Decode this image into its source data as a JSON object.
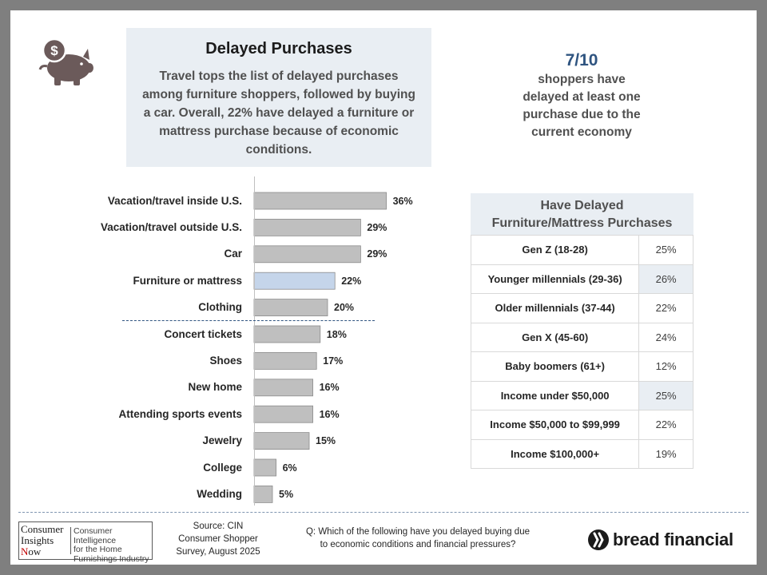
{
  "header": {
    "title": "Delayed Purchases",
    "body": "Travel tops the list of delayed purchases among furniture shoppers, followed by buying a car. Overall, 22% have delayed a furniture or mattress purchase because of economic conditions."
  },
  "stat": {
    "value": "7/10",
    "line1": "shoppers have",
    "line2": "delayed at least one",
    "line3": "purchase due to the",
    "line4": "current economy"
  },
  "chart_data": {
    "type": "bar",
    "orientation": "horizontal",
    "categories": [
      "Vacation/travel inside U.S.",
      "Vacation/travel outside U.S.",
      "Car",
      "Furniture or mattress",
      "Clothing",
      "Concert tickets",
      "Shoes",
      "New home",
      "Attending sports events",
      "Jewelry",
      "College",
      "Wedding"
    ],
    "values": [
      36,
      29,
      29,
      22,
      20,
      18,
      17,
      16,
      16,
      15,
      6,
      5
    ],
    "value_labels": [
      "36%",
      "29%",
      "29%",
      "22%",
      "20%",
      "18%",
      "17%",
      "16%",
      "16%",
      "15%",
      "6%",
      "5%"
    ],
    "highlight_index": 3,
    "colors": {
      "bar": "#bfbfbf",
      "highlight": "#c5d5ea",
      "stroke": "#8c8c8c",
      "divider": "#2f5480"
    },
    "xlim": [
      0,
      40
    ],
    "grid": false
  },
  "table": {
    "title_line1": "Have Delayed",
    "title_line2": "Furniture/Mattress Purchases",
    "rows": [
      {
        "segment": "Gen Z (18-28)",
        "value": "25%"
      },
      {
        "segment": "Younger millennials (29-36)",
        "value": "26%"
      },
      {
        "segment": "Older millennials (37-44)",
        "value": "22%"
      },
      {
        "segment": "Gen X (45-60)",
        "value": "24%"
      },
      {
        "segment": "Baby boomers (61+)",
        "value": "12%"
      },
      {
        "segment": "Income under $50,000",
        "value": "25%"
      },
      {
        "segment": "Income $50,000 to $99,999",
        "value": "22%"
      },
      {
        "segment": "Income $100,000+",
        "value": "19%"
      }
    ]
  },
  "footer": {
    "cin_logo": {
      "line1": "Consumer",
      "line2": "Insights",
      "line3_initial": "N",
      "line3_rest": "ow",
      "tagline1": "Consumer Intelligence",
      "tagline2": "for the Home",
      "tagline3": "Furnishings Industry"
    },
    "source_line1": "Source: CIN",
    "source_line2": "Consumer Shopper",
    "source_line3": "Survey, August 2025",
    "question_line1": "Q: Which of the following have you delayed buying due",
    "question_line2": "to economic conditions and financial pressures?",
    "brand": "bread financial"
  },
  "colors": {
    "accent": "#2f5480",
    "panel": "#e9eef3",
    "frame": "#7f7f7f"
  }
}
